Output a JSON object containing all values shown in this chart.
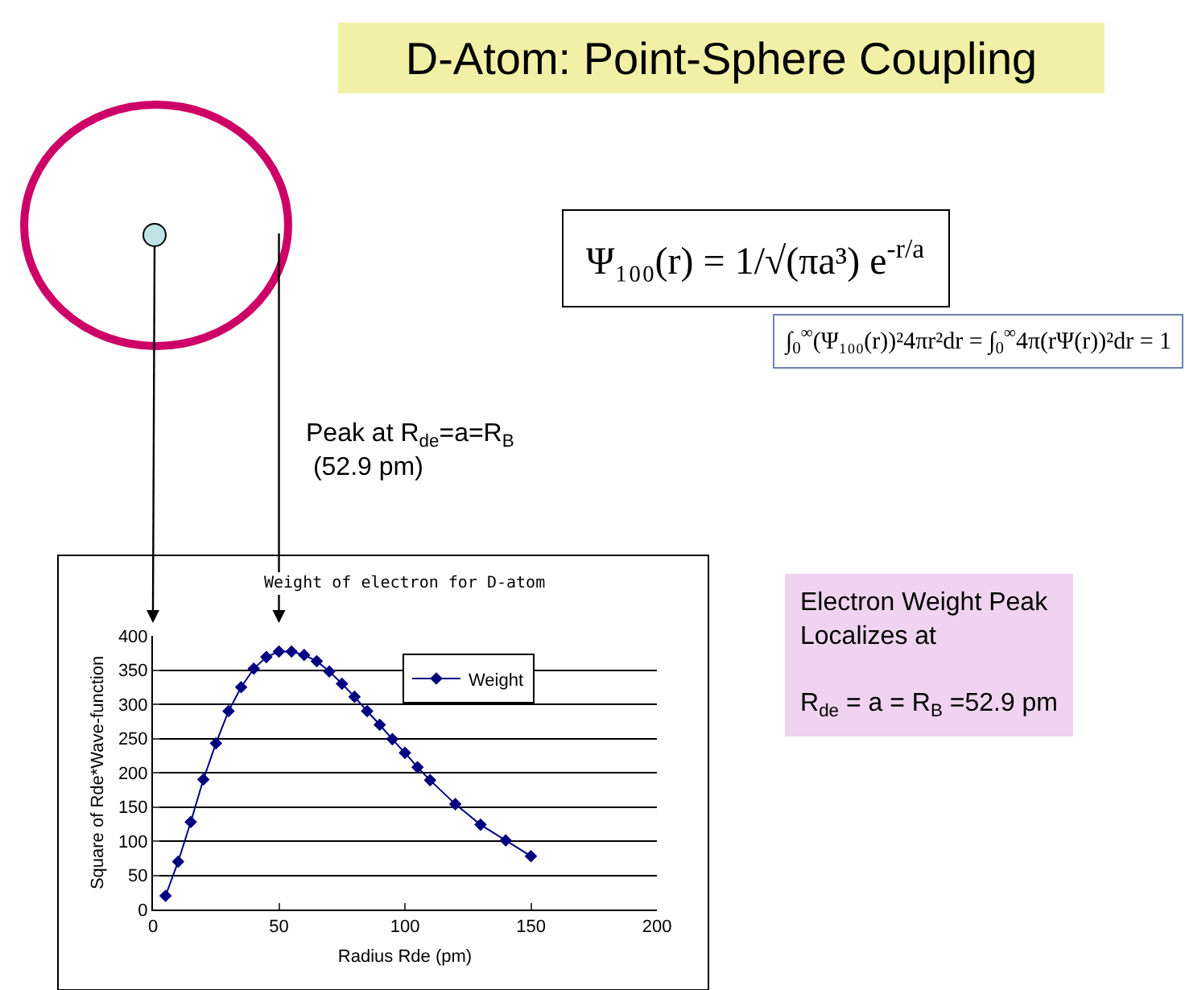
{
  "chart_data": {
    "type": "line",
    "title": "D-Atom: Point-Sphere Coupling",
    "subtitle": "Weight of electron for D-atom",
    "xlabel": "Radius Rde (pm)",
    "ylabel": "Square of Rde*Wave-function",
    "x": [
      5,
      10,
      15,
      20,
      25,
      30,
      35,
      40,
      45,
      50,
      55,
      60,
      65,
      70,
      75,
      80,
      85,
      90,
      95,
      100,
      105,
      110,
      120,
      130,
      140,
      150
    ],
    "series": [
      {
        "name": "Weight",
        "color": "#000080",
        "values": [
          20,
          70,
          128,
          190,
          243,
          290,
          325,
          352,
          369,
          377,
          377,
          372,
          363,
          348,
          330,
          311,
          290,
          270,
          249,
          229,
          208,
          189,
          154,
          124,
          101,
          78
        ]
      }
    ],
    "xlim": [
      0,
      200
    ],
    "xticks": [
      0,
      50,
      100,
      150,
      200
    ],
    "ylim": [
      0,
      400
    ],
    "yticks": [
      0,
      50,
      100,
      150,
      200,
      250,
      300,
      350,
      400
    ],
    "grid": "y",
    "legend": "top right",
    "marker": "diamond",
    "line_style": "solid",
    "annotations": [
      "Ψ₁₀₀(r) = 1/√(πa³) e$^{-r/a}$",
      "∫$_{0}$$^{∞}$(Ψ₁₀₀(r))²4πr²dr = ∫$_{0}$$^{∞}$4π(rΨ(r))²dr = 1",
      "Peak at R$_{de}$=a=R$_{B}$\n (52.9 pm)",
      "Electron Weight Peak\nLocalizes at\n\nR$_{de}$ = a = R$_{B}$ =52.9 pm"
    ]
  }
}
